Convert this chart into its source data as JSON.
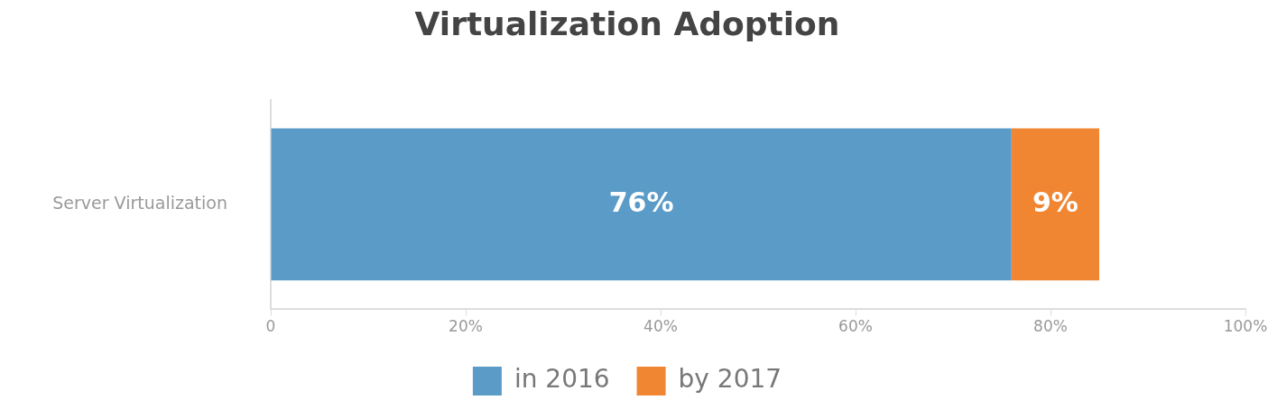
{
  "chart_data": {
    "type": "bar",
    "orientation": "horizontal",
    "stacked": true,
    "title": "Virtualization Adoption",
    "categories": [
      "Server Virtualization"
    ],
    "series": [
      {
        "name": "in 2016",
        "color": "#5b9bc8",
        "values": [
          76
        ],
        "value_labels": [
          "76%"
        ]
      },
      {
        "name": "by 2017",
        "color": "#f08632",
        "values": [
          9
        ],
        "value_labels": [
          "9%"
        ]
      }
    ],
    "xlim": [
      0,
      100
    ],
    "xticks": [
      0,
      {
        "value": 20,
        "label": "20%"
      },
      {
        "value": 40,
        "label": "40%"
      },
      {
        "value": 60,
        "label": "60%"
      },
      {
        "value": 80,
        "label": "80%"
      },
      {
        "value": 100,
        "label": "100%"
      }
    ],
    "grid": false,
    "legend": "bottom"
  }
}
